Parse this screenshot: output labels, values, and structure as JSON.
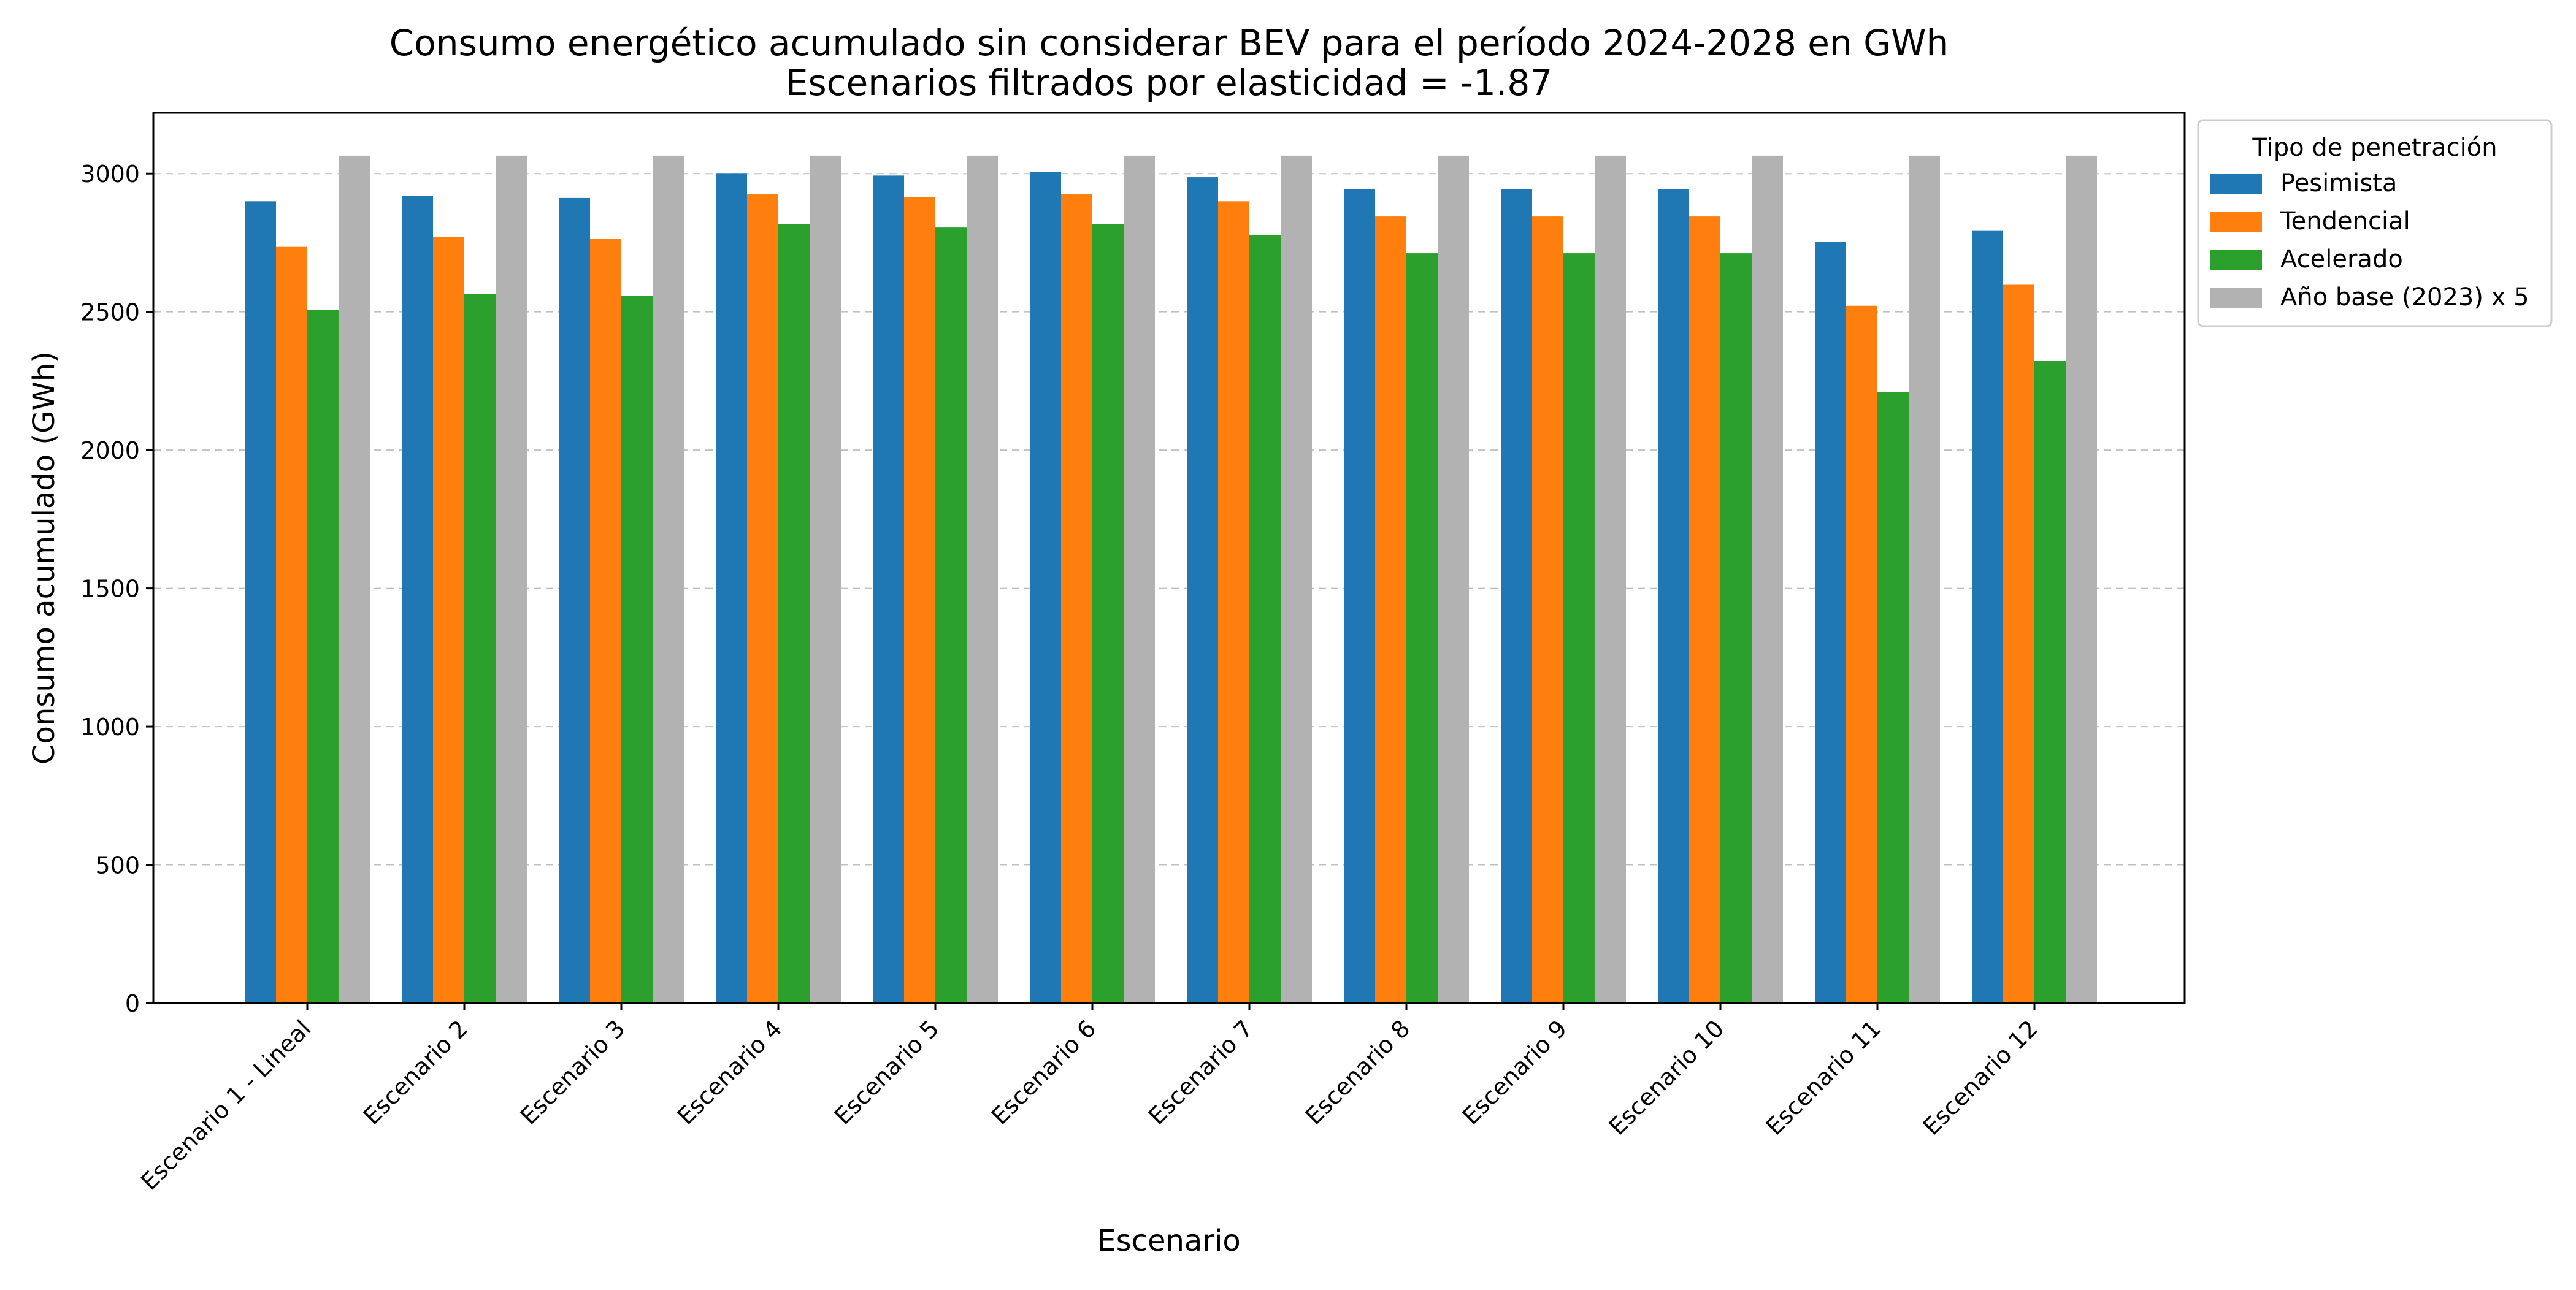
{
  "chart_data": {
    "type": "bar",
    "title": "Consumo energético acumulado sin considerar BEV para el período 2024-2028 en GWh",
    "subtitle": "Escenarios filtrados por elasticidad = -1.87",
    "xlabel": "Escenario",
    "ylabel": "Consumo acumulado (GWh)",
    "ylim": [
      0,
      3220
    ],
    "yticks": [
      0,
      500,
      1000,
      1500,
      2000,
      2500,
      3000
    ],
    "grid": "horizontal dashed",
    "legend_title": "Tipo de penetración",
    "legend_position": "outside-top-right",
    "categories": [
      "Escenario 1 - Lineal",
      "Escenario 2",
      "Escenario 3",
      "Escenario 4",
      "Escenario 5",
      "Escenario 6",
      "Escenario 7",
      "Escenario 8",
      "Escenario 9",
      "Escenario 10",
      "Escenario 11",
      "Escenario 12"
    ],
    "series": [
      {
        "name": "Pesimista",
        "color": "#1f77b4",
        "values": [
          2900,
          2920,
          2912,
          3002,
          2993,
          3005,
          2987,
          2945,
          2945,
          2945,
          2753,
          2795
        ]
      },
      {
        "name": "Tendencial",
        "color": "#ff7f0e",
        "values": [
          2735,
          2770,
          2765,
          2925,
          2915,
          2925,
          2900,
          2845,
          2845,
          2845,
          2522,
          2598
        ]
      },
      {
        "name": "Acelerado",
        "color": "#2ca02c",
        "values": [
          2508,
          2565,
          2558,
          2818,
          2805,
          2818,
          2777,
          2712,
          2712,
          2712,
          2210,
          2323
        ]
      },
      {
        "name": "Año base (2023) x 5",
        "color": "#b2b2b2",
        "values": [
          3065,
          3065,
          3065,
          3065,
          3065,
          3065,
          3065,
          3065,
          3065,
          3065,
          3065,
          3065
        ]
      }
    ]
  }
}
